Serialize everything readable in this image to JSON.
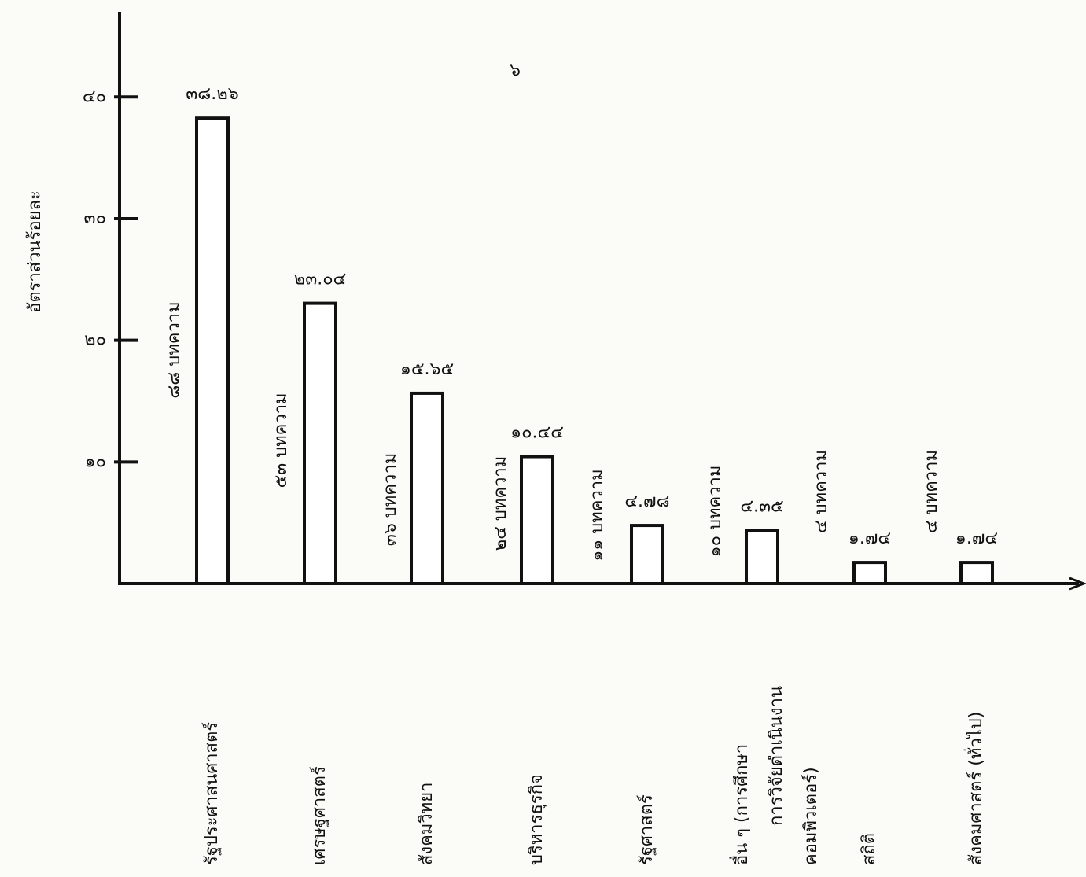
{
  "chart_data": {
    "type": "bar",
    "y_label": "อัตราส่วนร้อยละ",
    "page_number": "๖",
    "categories": [
      "รัฐประศาสนศาสตร์",
      "เศรษฐศาสตร์",
      "สังคมวิทยา",
      "บริหารธุรกิจ",
      "รัฐศาสตร์",
      "อื่น ๆ (การศึกษา\nการวิจัยดำเนินงาน\nคอมพิวเตอร์)",
      "สถิติ",
      "สังคมศาสตร์ (ทั่วไป)"
    ],
    "values": [
      38.26,
      23.04,
      15.65,
      10.44,
      4.78,
      4.35,
      1.74,
      1.74
    ],
    "value_labels": [
      "๓๘.๒๖",
      "๒๓.๐๔",
      "๑๕.๖๕",
      "๑๐.๔๔",
      "๔.๗๘",
      "๔.๓๕",
      "๑.๗๔",
      "๑.๗๔"
    ],
    "count_labels": [
      "๘๘ บทความ",
      "๕๓ บทความ",
      "๓๖ บทความ",
      "๒๔ บทความ",
      "๑๑ บทความ",
      "๑๐ บทความ",
      "๔ บทความ",
      "๔ บทความ"
    ],
    "color": "#ffffff",
    "ylim": [
      0,
      47
    ],
    "yticks": [
      {
        "value": 10,
        "label": "๑๐"
      },
      {
        "value": 20,
        "label": "๒๐"
      },
      {
        "value": 30,
        "label": "๓๐"
      },
      {
        "value": 40,
        "label": "๔๐"
      }
    ]
  }
}
